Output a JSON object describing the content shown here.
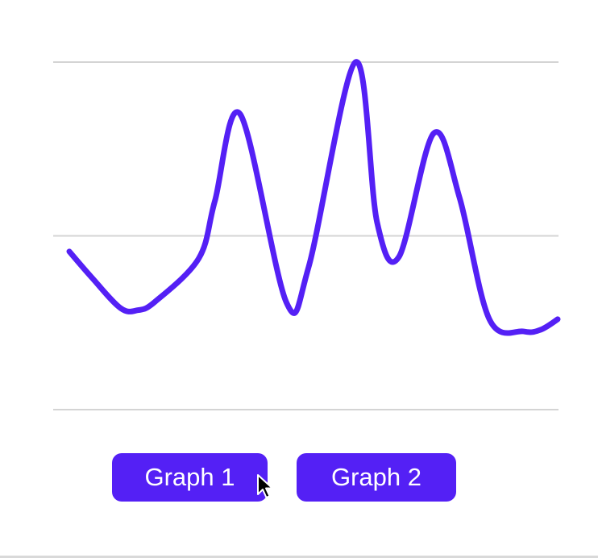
{
  "colors": {
    "accent": "#5420f5",
    "gridline": "#d4d4d4",
    "background": "#ffffff"
  },
  "buttons": {
    "graph1_label": "Graph 1",
    "graph2_label": "Graph 2"
  },
  "cursor": {
    "icon": "arrow-pointer-icon"
  },
  "chart_data": {
    "type": "line",
    "title": "",
    "xlabel": "",
    "ylabel": "",
    "grid": true,
    "gridlines_y": [
      0,
      0.5,
      1
    ],
    "ylim": [
      0,
      1
    ],
    "xlim": [
      0,
      1
    ],
    "legend": "none",
    "smooth": true,
    "series": [
      {
        "color": "#5420f5",
        "x": [
          0,
          0.046,
          0.105,
          0.14,
          0.175,
          0.265,
          0.298,
          0.35,
          0.444,
          0.49,
          0.586,
          0.63,
          0.675,
          0.746,
          0.799,
          0.86,
          0.93,
          0.965,
          1.0
        ],
        "y": [
          0.455,
          0.38,
          0.292,
          0.286,
          0.31,
          0.435,
          0.6,
          0.85,
          0.31,
          0.41,
          1.0,
          0.54,
          0.44,
          0.795,
          0.61,
          0.26,
          0.225,
          0.23,
          0.26
        ]
      }
    ]
  }
}
